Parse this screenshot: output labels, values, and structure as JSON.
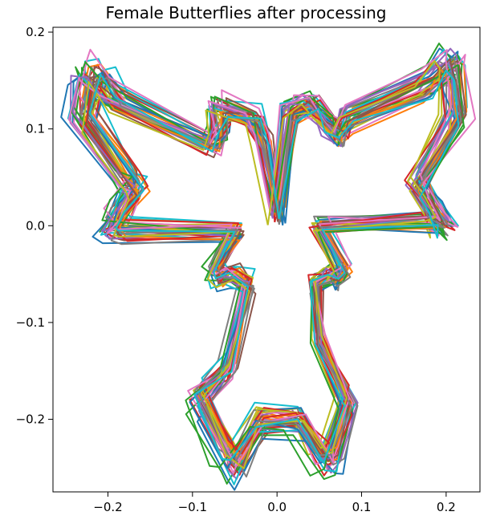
{
  "chart_data": {
    "type": "line",
    "title": "Female Butterflies after processing",
    "xlabel": "",
    "ylabel": "",
    "xlim": [
      -0.265,
      0.24
    ],
    "ylim": [
      -0.275,
      0.205
    ],
    "xticks": [
      -0.2,
      -0.1,
      0.0,
      0.1,
      0.2
    ],
    "xtick_labels": [
      "−0.2",
      "−0.1",
      "0.0",
      "0.1",
      "0.2"
    ],
    "yticks": [
      0.2,
      0.1,
      0.0,
      -0.1,
      -0.2
    ],
    "ytick_labels": [
      "0.2",
      "0.1",
      "0.0",
      "−0.1",
      "−0.2"
    ],
    "grid": false,
    "legend": "none",
    "series_count": 40,
    "series_colors": [
      "#1f77b4",
      "#ff7f0e",
      "#2ca02c",
      "#d62728",
      "#9467bd",
      "#8c564b",
      "#e377c2",
      "#7f7f7f",
      "#bcbd22",
      "#17becf"
    ],
    "mean_outline": [
      [
        0.0,
        0.01
      ],
      [
        -0.018,
        0.09
      ],
      [
        -0.03,
        0.115
      ],
      [
        -0.07,
        0.125
      ],
      [
        -0.07,
        0.1
      ],
      [
        -0.08,
        0.085
      ],
      [
        -0.2,
        0.135
      ],
      [
        -0.22,
        0.16
      ],
      [
        -0.225,
        0.155
      ],
      [
        -0.235,
        0.115
      ],
      [
        -0.18,
        0.05
      ],
      [
        -0.17,
        0.04
      ],
      [
        -0.19,
        0.015
      ],
      [
        -0.2,
        0.0
      ],
      [
        -0.19,
        -0.005
      ],
      [
        -0.05,
        -0.005
      ],
      [
        -0.075,
        -0.045
      ],
      [
        -0.07,
        -0.055
      ],
      [
        -0.055,
        -0.05
      ],
      [
        -0.035,
        -0.06
      ],
      [
        -0.06,
        -0.15
      ],
      [
        -0.095,
        -0.18
      ],
      [
        -0.06,
        -0.24
      ],
      [
        -0.05,
        -0.25
      ],
      [
        -0.02,
        -0.205
      ],
      [
        0.025,
        -0.205
      ],
      [
        0.055,
        -0.245
      ],
      [
        0.065,
        -0.24
      ],
      [
        0.085,
        -0.185
      ],
      [
        0.05,
        -0.12
      ],
      [
        0.045,
        -0.06
      ],
      [
        0.065,
        -0.05
      ],
      [
        0.07,
        -0.055
      ],
      [
        0.08,
        -0.045
      ],
      [
        0.05,
        0.0
      ],
      [
        0.19,
        0.005
      ],
      [
        0.2,
        0.0
      ],
      [
        0.185,
        0.02
      ],
      [
        0.17,
        0.045
      ],
      [
        0.215,
        0.115
      ],
      [
        0.21,
        0.16
      ],
      [
        0.205,
        0.17
      ],
      [
        0.18,
        0.15
      ],
      [
        0.085,
        0.115
      ],
      [
        0.075,
        0.095
      ],
      [
        0.06,
        0.11
      ],
      [
        0.04,
        0.13
      ],
      [
        0.015,
        0.12
      ],
      [
        0.0,
        0.01
      ]
    ]
  }
}
